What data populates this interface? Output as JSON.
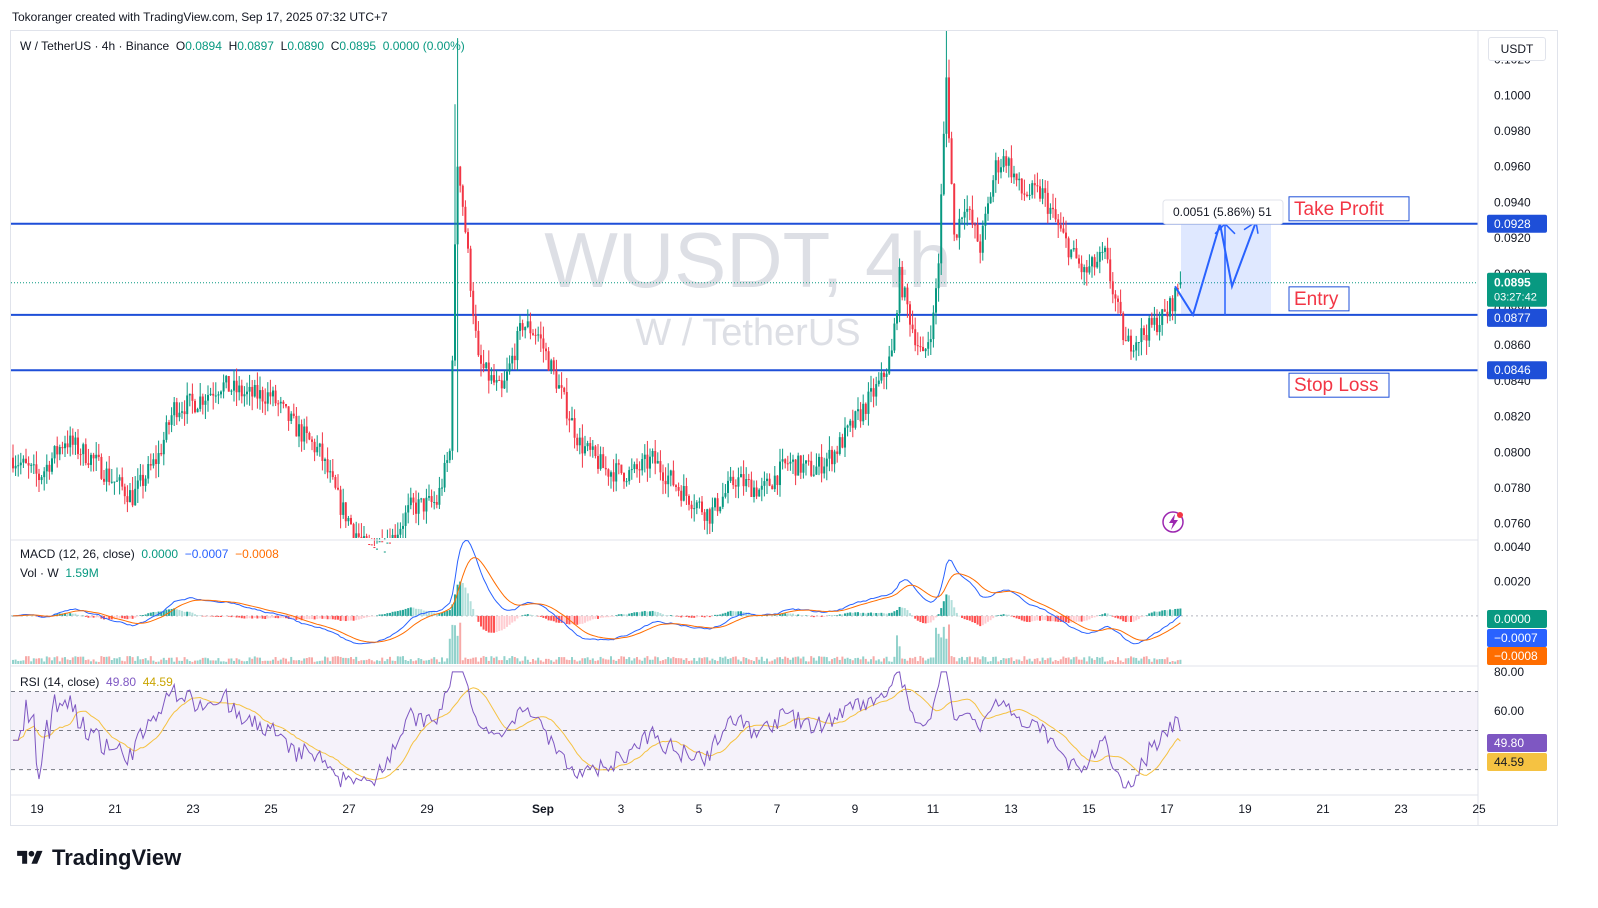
{
  "header": {
    "credit": "Tokoranger created with TradingView.com, Sep 17, 2025 07:32 UTC+7"
  },
  "legend": {
    "symbol": "W / TetherUS · 4h · Binance",
    "o_label": "O",
    "o_val": "0.0894",
    "h_label": "H",
    "h_val": "0.0897",
    "l_label": "L",
    "l_val": "0.0890",
    "c_label": "C",
    "c_val": "0.0895",
    "chg": "0.0000 (0.00%)"
  },
  "watermark": {
    "main": "WUSDT, 4h",
    "sub": "W / TetherUS"
  },
  "currency_button": "USDT",
  "brand": "TradingView",
  "price_axis": [
    "0.1020",
    "0.1000",
    "0.0980",
    "0.0960",
    "0.0940",
    "0.0920",
    "0.0900",
    "0.0880",
    "0.0860",
    "0.0840",
    "0.0820",
    "0.0800",
    "0.0780",
    "0.0760"
  ],
  "price_badges": {
    "tp": "0.0928",
    "current": "0.0895",
    "countdown": "03:27:42",
    "entry": "0.0877",
    "sl": "0.0846"
  },
  "annotations": {
    "take_profit": "Take Profit",
    "entry": "Entry",
    "stop_loss": "Stop Loss",
    "measure": "0.0051 (5.86%) 51"
  },
  "macd": {
    "label": "MACD (12, 26, close)",
    "v1": "0.0000",
    "v2": "−0.0007",
    "v3": "−0.0008",
    "axis": [
      "0.0040",
      "0.0020"
    ],
    "badges": [
      "0.0000",
      "−0.0007",
      "−0.0008"
    ]
  },
  "volume": {
    "label": "Vol · W",
    "value": "1.59M"
  },
  "rsi": {
    "label": "RSI (14, close)",
    "v1": "49.80",
    "v2": "44.59",
    "axis": [
      "80.00",
      "60.00"
    ],
    "badges": [
      "49.80",
      "44.59"
    ]
  },
  "time_axis": [
    "19",
    "21",
    "23",
    "25",
    "27",
    "29",
    "Sep",
    "3",
    "5",
    "7",
    "9",
    "11",
    "13",
    "15",
    "17",
    "19",
    "21",
    "23",
    "25"
  ],
  "colors": {
    "up": "#089981",
    "down": "#f23645",
    "level": "#1e4fd8",
    "macd": "#2962ff",
    "signal": "#ff6d00",
    "rsi": "#7e57c2",
    "rsi_ma": "#f5c242",
    "annot": "#f23645"
  },
  "chart_data": {
    "type": "candlestick",
    "symbol": "W / TetherUS",
    "interval": "4h",
    "exchange": "Binance",
    "x_ticks": [
      "19",
      "21",
      "23",
      "25",
      "27",
      "29",
      "Sep",
      "3",
      "5",
      "7",
      "9",
      "11",
      "13",
      "15",
      "17",
      "19",
      "21",
      "23",
      "25"
    ],
    "y_range": [
      0.0752,
      0.1036
    ],
    "levels": {
      "take_profit": 0.0928,
      "entry": 0.0877,
      "stop_loss": 0.0846,
      "current": 0.0895
    },
    "ohlc_anchor_closes": [
      [
        0,
        0.0797
      ],
      [
        10,
        0.0786
      ],
      [
        20,
        0.0807
      ],
      [
        30,
        0.0797
      ],
      [
        38,
        0.0785
      ],
      [
        46,
        0.0775
      ],
      [
        56,
        0.0798
      ],
      [
        62,
        0.0825
      ],
      [
        70,
        0.0828
      ],
      [
        80,
        0.0838
      ],
      [
        90,
        0.0832
      ],
      [
        99,
        0.0832
      ],
      [
        108,
        0.0815
      ],
      [
        118,
        0.08
      ],
      [
        126,
        0.077
      ],
      [
        136,
        0.0745
      ],
      [
        146,
        0.0752
      ],
      [
        153,
        0.0769
      ],
      [
        163,
        0.0772
      ],
      [
        168,
        0.08
      ],
      [
        171,
        0.0968
      ],
      [
        175,
        0.091
      ],
      [
        179,
        0.085
      ],
      [
        188,
        0.0833
      ],
      [
        196,
        0.0872
      ],
      [
        202,
        0.0866
      ],
      [
        209,
        0.084
      ],
      [
        218,
        0.0805
      ],
      [
        228,
        0.079
      ],
      [
        238,
        0.0788
      ],
      [
        246,
        0.0796
      ],
      [
        256,
        0.078
      ],
      [
        268,
        0.0765
      ],
      [
        278,
        0.0785
      ],
      [
        288,
        0.0778
      ],
      [
        298,
        0.0794
      ],
      [
        308,
        0.079
      ],
      [
        316,
        0.08
      ],
      [
        326,
        0.0822
      ],
      [
        334,
        0.084
      ],
      [
        338,
        0.0855
      ],
      [
        341,
        0.0898
      ],
      [
        346,
        0.087
      ],
      [
        350,
        0.0852
      ],
      [
        354,
        0.0875
      ],
      [
        356,
        0.0908
      ],
      [
        359,
        0.101
      ],
      [
        362,
        0.092
      ],
      [
        366,
        0.094
      ],
      [
        372,
        0.0915
      ],
      [
        378,
        0.096
      ],
      [
        382,
        0.0965
      ],
      [
        388,
        0.0945
      ],
      [
        396,
        0.0945
      ],
      [
        404,
        0.092
      ],
      [
        412,
        0.09
      ],
      [
        420,
        0.091
      ],
      [
        428,
        0.086
      ],
      [
        436,
        0.0868
      ],
      [
        444,
        0.0878
      ],
      [
        449,
        0.0895
      ]
    ],
    "macd_series": {
      "macd_last": 0.0,
      "signal_last": -0.0007,
      "hist_last": -0.0008,
      "y_range": [
        -0.0028,
        0.0043
      ]
    },
    "rsi_series": {
      "rsi_last": 49.8,
      "ma_last": 44.59,
      "levels": [
        70,
        50,
        30
      ],
      "y_range": [
        18,
        82
      ]
    },
    "volume_last": "1.59M"
  }
}
